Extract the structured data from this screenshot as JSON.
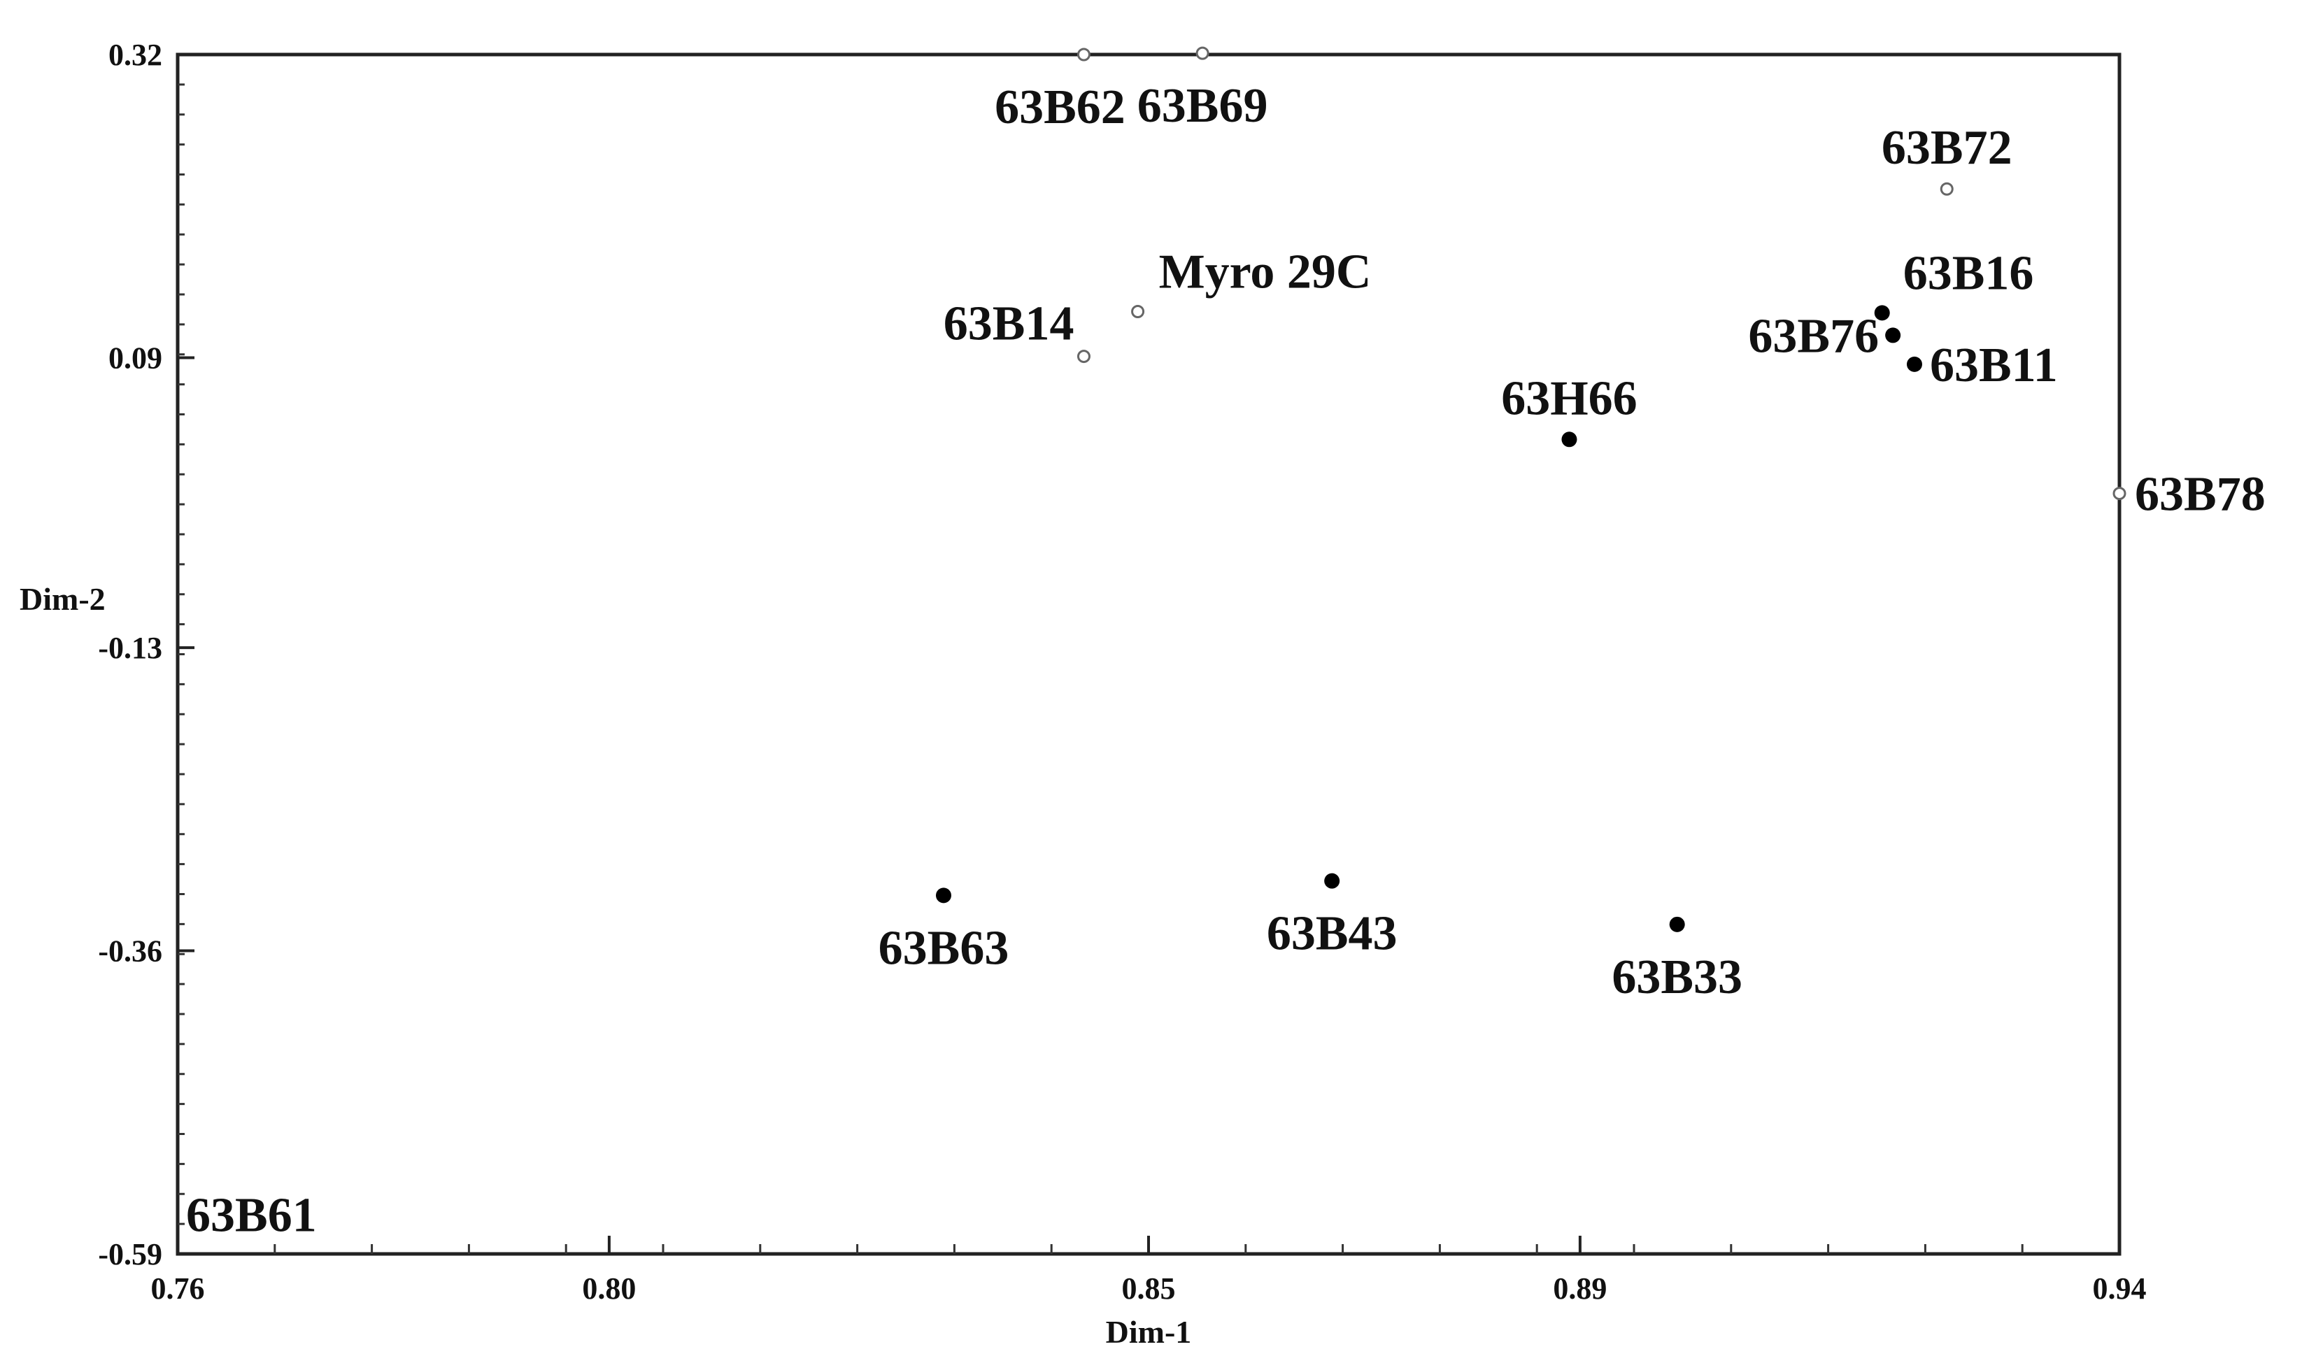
{
  "chart_data": {
    "type": "scatter",
    "title": "",
    "xlabel": "Dim-1",
    "ylabel": "Dim-2",
    "xlim": [
      0.76,
      0.94
    ],
    "ylim": [
      -0.59,
      0.32
    ],
    "xticks": [
      {
        "value": 0.76,
        "label": "0.76"
      },
      {
        "value": 0.8,
        "label": "0.80"
      },
      {
        "value": 0.85,
        "label": "0.85"
      },
      {
        "value": 0.89,
        "label": "0.89"
      },
      {
        "value": 0.94,
        "label": "0.94"
      }
    ],
    "yticks": [
      {
        "value": 0.32,
        "label": "0.32"
      },
      {
        "value": 0.09,
        "label": "0.09"
      },
      {
        "value": -0.13,
        "label": "-0.13"
      },
      {
        "value": -0.36,
        "label": "-0.36"
      },
      {
        "value": -0.59,
        "label": "-0.59"
      }
    ],
    "grid": false,
    "points": [
      {
        "label": "63B62",
        "x": 0.844,
        "y": 0.32,
        "marker": "hollow",
        "label_pos": "below-left"
      },
      {
        "label": "63B69",
        "x": 0.855,
        "y": 0.321,
        "marker": "hollow",
        "label_pos": "below"
      },
      {
        "label": "63B72",
        "x": 0.924,
        "y": 0.218,
        "marker": "hollow",
        "label_pos": "above"
      },
      {
        "label": "Myro 29C",
        "x": 0.849,
        "y": 0.125,
        "marker": "hollow",
        "label_pos": "above-right"
      },
      {
        "label": "63B14",
        "x": 0.844,
        "y": 0.091,
        "marker": "hollow",
        "label_pos": "upper-left"
      },
      {
        "label": "63B16",
        "x": 0.918,
        "y": 0.124,
        "marker": "filled",
        "label_pos": "above-right"
      },
      {
        "label": "63B76",
        "x": 0.919,
        "y": 0.107,
        "marker": "filled",
        "label_pos": "left"
      },
      {
        "label": "63B11",
        "x": 0.921,
        "y": 0.085,
        "marker": "filled",
        "label_pos": "right"
      },
      {
        "label": "63H66",
        "x": 0.889,
        "y": 0.028,
        "marker": "filled",
        "label_pos": "above"
      },
      {
        "label": "63B78",
        "x": 0.94,
        "y": -0.013,
        "marker": "hollow",
        "label_pos": "right"
      },
      {
        "label": "63B63",
        "x": 0.831,
        "y": -0.318,
        "marker": "filled",
        "label_pos": "below"
      },
      {
        "label": "63B43",
        "x": 0.867,
        "y": -0.307,
        "marker": "filled",
        "label_pos": "below"
      },
      {
        "label": "63B33",
        "x": 0.899,
        "y": -0.34,
        "marker": "filled",
        "label_pos": "below"
      },
      {
        "label": "63B61",
        "x": 0.76,
        "y": -0.56,
        "marker": "none",
        "label_pos": "right"
      }
    ]
  }
}
